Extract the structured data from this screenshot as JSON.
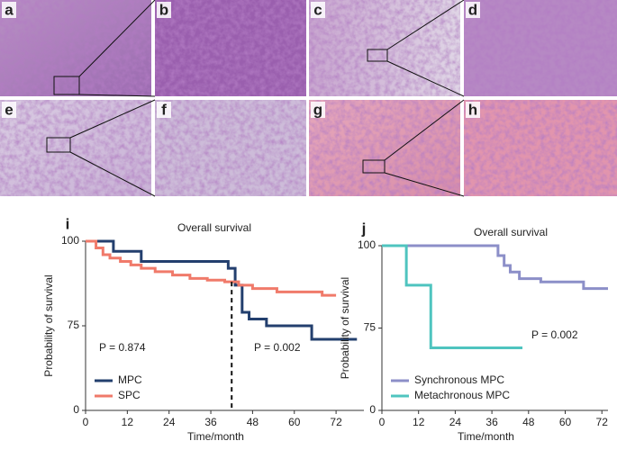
{
  "panels": [
    "a",
    "b",
    "c",
    "d",
    "e",
    "f",
    "g",
    "h"
  ],
  "chart_data": [
    {
      "type": "step",
      "panel": "i",
      "title": "Overall survival",
      "xlabel": "Time/month",
      "ylabel": "Probability of survival",
      "xlim": [
        0,
        80
      ],
      "xticks": [
        0,
        12,
        24,
        36,
        48,
        60,
        72
      ],
      "ylim": [
        0,
        100
      ],
      "yticks": [
        0,
        75,
        100
      ],
      "legend": "lower left",
      "vline": 42,
      "annotations": [
        "P = 0.874",
        "P = 0.002"
      ],
      "series": [
        {
          "name": "MPC",
          "color": "#233f6e",
          "x": [
            0,
            8,
            16,
            41,
            43,
            45,
            47,
            52,
            65,
            78
          ],
          "values": [
            100,
            97,
            94,
            92,
            87,
            79,
            77,
            75,
            63,
            63
          ]
        },
        {
          "name": "SPC",
          "color": "#f07a6a",
          "x": [
            0,
            3,
            5,
            7,
            10,
            13,
            16,
            20,
            25,
            30,
            35,
            40,
            44,
            48,
            55,
            62,
            68,
            72
          ],
          "values": [
            100,
            98,
            96,
            95,
            94,
            93,
            92,
            91,
            90,
            89,
            88.5,
            88,
            87,
            86,
            85,
            85,
            84,
            84
          ]
        }
      ]
    },
    {
      "type": "step",
      "panel": "j",
      "title": "Overall survival",
      "xlabel": "Time/month",
      "ylabel": "Probability of survival",
      "xlim": [
        0,
        74
      ],
      "xticks": [
        0,
        12,
        24,
        36,
        48,
        60,
        72
      ],
      "ylim": [
        0,
        100
      ],
      "yticks": [
        0,
        75,
        100
      ],
      "legend": "lower left",
      "annotations": [
        "P = 0.002"
      ],
      "series": [
        {
          "name": "Synchronous MPC",
          "color": "#8c8fc8",
          "x": [
            0,
            38,
            40,
            42,
            45,
            52,
            66,
            74
          ],
          "values": [
            100,
            97,
            94,
            92,
            90,
            89,
            87,
            87
          ]
        },
        {
          "name": "Metachronous MPC",
          "color": "#4fc4bf",
          "x": [
            0,
            8,
            16,
            46
          ],
          "values": [
            100,
            88,
            57,
            57
          ]
        }
      ]
    }
  ]
}
